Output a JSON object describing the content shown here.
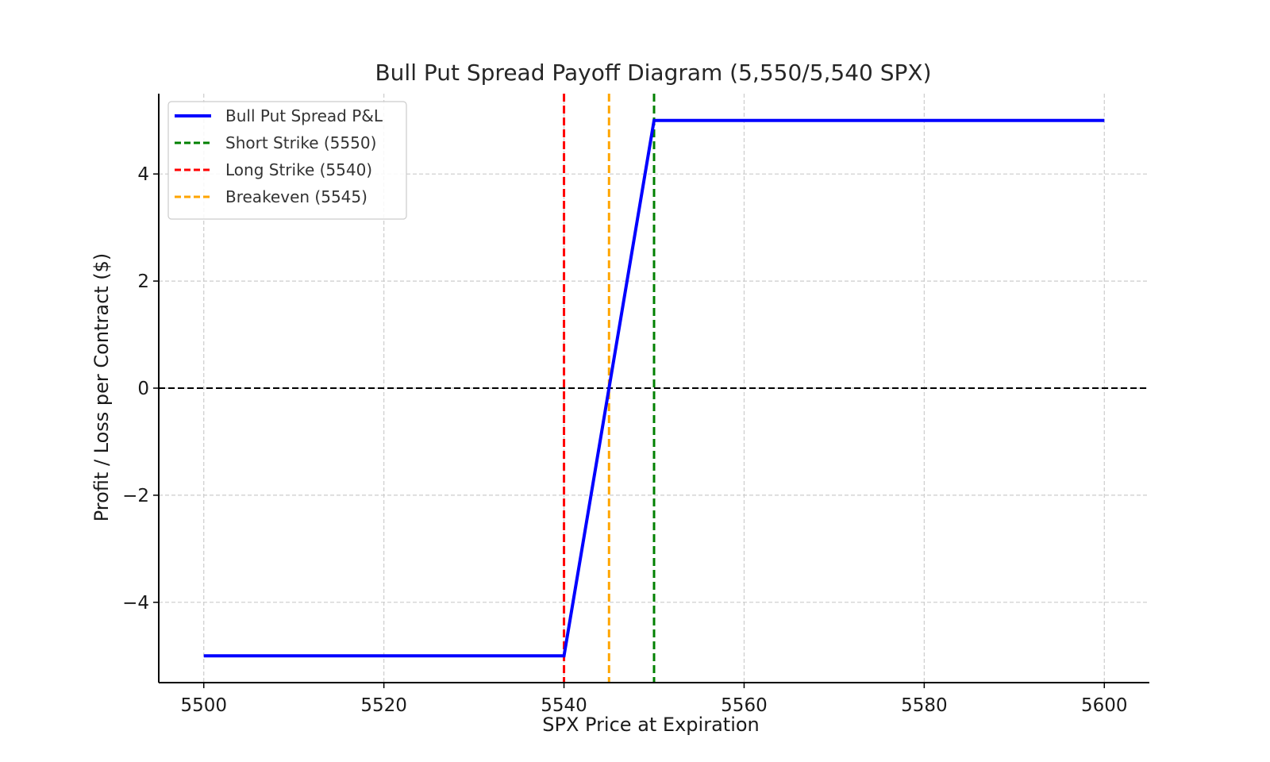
{
  "chart_data": {
    "type": "line",
    "title": "Bull Put Spread Payoff Diagram (5,550/5,540 SPX)",
    "xlabel": "SPX Price at Expiration",
    "ylabel": "Profit / Loss per Contract ($)",
    "xlim": [
      5495,
      5605
    ],
    "ylim": [
      -5.5,
      5.5
    ],
    "xticks": [
      5500,
      5520,
      5540,
      5560,
      5580,
      5600
    ],
    "xtick_labels": [
      "5500",
      "5520",
      "5540",
      "5560",
      "5580",
      "5600"
    ],
    "yticks": [
      -4,
      -2,
      0,
      2,
      4
    ],
    "ytick_labels": [
      "−4",
      "−2",
      "0",
      "2",
      "4"
    ],
    "grid": true,
    "legend_position": "top-left",
    "series": [
      {
        "name": "Bull Put Spread P&L",
        "color": "#0000ff",
        "x": [
          5500,
          5540,
          5550,
          5600
        ],
        "y": [
          -5,
          -5,
          5,
          5
        ]
      }
    ],
    "reference_lines": [
      {
        "name": "Short Strike (5550)",
        "x": 5550,
        "color": "#008000",
        "style": "dashed"
      },
      {
        "name": "Long Strike (5540)",
        "x": 5540,
        "color": "#ff0000",
        "style": "dashed"
      },
      {
        "name": "Breakeven (5545)",
        "x": 5545,
        "color": "#ffa500",
        "style": "dashed"
      }
    ],
    "zero_line": {
      "y": 0,
      "color": "#000000",
      "style": "dashed"
    }
  }
}
